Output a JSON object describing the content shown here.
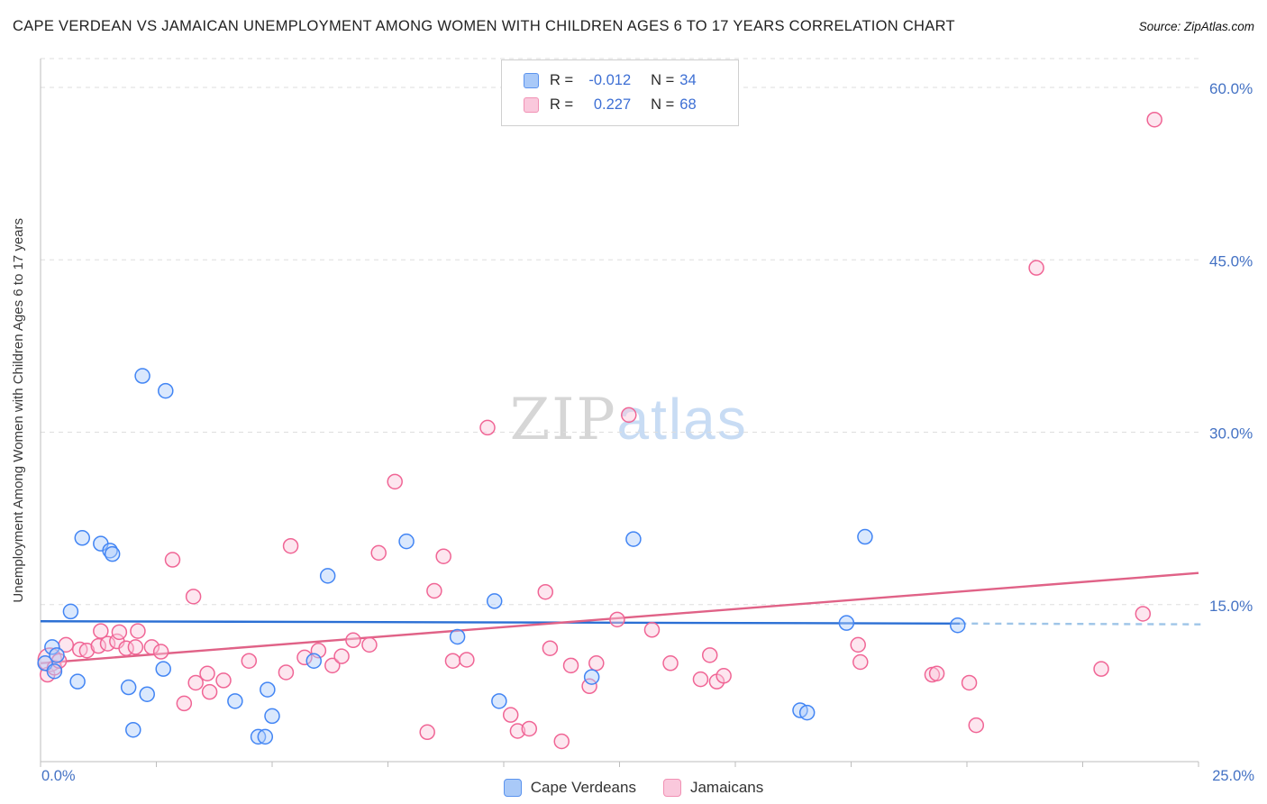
{
  "watermark": {
    "part1": "ZIP",
    "part2": "atlas"
  },
  "legend_labels": {
    "r": "R =",
    "n": "N ="
  },
  "chart_data": {
    "type": "scatter",
    "title": "CAPE VERDEAN VS JAMAICAN UNEMPLOYMENT AMONG WOMEN WITH CHILDREN AGES 6 TO 17 YEARS CORRELATION CHART",
    "source": "Source: ZipAtlas.com",
    "ylabel": "Unemployment Among Women with Children Ages 6 to 17 years",
    "xlabel": "",
    "xlim": [
      0,
      25
    ],
    "ylim": [
      0,
      62
    ],
    "grid": true,
    "legend_position": "top-center",
    "y_gridlines": [
      15,
      30,
      45,
      60
    ],
    "y_tick_labels": [
      "15.0%",
      "30.0%",
      "45.0%",
      "60.0%"
    ],
    "x_tick_labels": [
      "0.0%",
      "25.0%"
    ],
    "series": [
      {
        "name": "Cape Verdeans",
        "R": -0.012,
        "N": 34,
        "fill": "#AECBFA",
        "stroke": "#4285F4",
        "trend_color": "#2B6FD4",
        "trend": {
          "x_start": 0,
          "y_start": 13.55,
          "x_end": 19.85,
          "y_end": 13.35,
          "extension": {
            "x_end": 25.15,
            "y_end": 13.28,
            "color": "#9FC5E8"
          }
        },
        "points": [
          [
            0.1,
            9.9
          ],
          [
            0.25,
            11.3
          ],
          [
            0.3,
            9.2
          ],
          [
            0.35,
            10.6
          ],
          [
            0.65,
            14.4
          ],
          [
            0.8,
            8.3
          ],
          [
            0.9,
            20.8
          ],
          [
            1.3,
            20.3
          ],
          [
            1.5,
            19.7
          ],
          [
            1.55,
            19.4
          ],
          [
            1.9,
            7.8
          ],
          [
            2.0,
            4.1
          ],
          [
            2.2,
            34.9
          ],
          [
            2.3,
            7.2
          ],
          [
            2.65,
            9.4
          ],
          [
            2.7,
            33.6
          ],
          [
            4.2,
            6.6
          ],
          [
            4.7,
            3.5
          ],
          [
            4.85,
            3.5
          ],
          [
            4.9,
            7.6
          ],
          [
            5.0,
            5.3
          ],
          [
            5.9,
            10.1
          ],
          [
            6.2,
            17.5
          ],
          [
            7.9,
            20.5
          ],
          [
            9.0,
            12.2
          ],
          [
            9.8,
            15.3
          ],
          [
            9.9,
            6.6
          ],
          [
            11.9,
            8.7
          ],
          [
            12.8,
            20.7
          ],
          [
            16.4,
            5.8
          ],
          [
            16.55,
            5.6
          ],
          [
            17.4,
            13.4
          ],
          [
            17.8,
            20.9
          ],
          [
            19.8,
            13.2
          ]
        ]
      },
      {
        "name": "Jamaicans",
        "R": 0.227,
        "N": 68,
        "fill": "#FAC8DC",
        "stroke": "#F06595",
        "trend_color": "#E06287",
        "trend": {
          "x_start": 0,
          "y_start": 9.9,
          "x_end": 25.0,
          "y_end": 17.75,
          "extension": null
        },
        "points": [
          [
            0.15,
            8.9
          ],
          [
            0.2,
            10.2,
            13
          ],
          [
            0.3,
            9.5
          ],
          [
            0.4,
            10.1
          ],
          [
            0.55,
            11.5
          ],
          [
            0.85,
            11.1
          ],
          [
            1.0,
            11.0
          ],
          [
            1.25,
            11.4
          ],
          [
            1.3,
            12.7
          ],
          [
            1.45,
            11.6
          ],
          [
            1.65,
            11.8
          ],
          [
            1.7,
            12.6
          ],
          [
            1.85,
            11.2
          ],
          [
            2.05,
            11.3
          ],
          [
            2.1,
            12.7
          ],
          [
            2.4,
            11.3
          ],
          [
            2.6,
            10.9
          ],
          [
            2.85,
            18.9
          ],
          [
            3.1,
            6.4
          ],
          [
            3.3,
            15.7
          ],
          [
            3.35,
            8.2
          ],
          [
            3.6,
            9.0
          ],
          [
            3.65,
            7.4
          ],
          [
            3.95,
            8.4
          ],
          [
            4.5,
            10.1
          ],
          [
            5.3,
            9.1
          ],
          [
            5.4,
            20.1
          ],
          [
            5.7,
            10.4
          ],
          [
            6.0,
            11.0
          ],
          [
            6.3,
            9.7
          ],
          [
            6.5,
            10.5
          ],
          [
            6.75,
            11.9
          ],
          [
            7.1,
            11.5
          ],
          [
            7.3,
            19.5
          ],
          [
            7.65,
            25.7
          ],
          [
            8.35,
            3.9
          ],
          [
            8.5,
            16.2
          ],
          [
            8.7,
            19.2
          ],
          [
            8.9,
            10.1
          ],
          [
            9.2,
            10.2
          ],
          [
            9.65,
            30.4
          ],
          [
            10.15,
            5.4
          ],
          [
            10.3,
            4.0
          ],
          [
            10.55,
            4.2
          ],
          [
            10.9,
            16.1
          ],
          [
            11.0,
            11.2
          ],
          [
            11.25,
            3.1
          ],
          [
            11.45,
            9.7
          ],
          [
            11.85,
            7.9
          ],
          [
            12.0,
            9.9
          ],
          [
            12.45,
            13.7
          ],
          [
            12.7,
            31.5
          ],
          [
            13.2,
            12.8
          ],
          [
            13.6,
            9.9
          ],
          [
            14.25,
            8.5
          ],
          [
            14.45,
            10.6
          ],
          [
            14.6,
            8.3
          ],
          [
            14.75,
            8.8
          ],
          [
            17.65,
            11.5
          ],
          [
            17.7,
            10.0
          ],
          [
            19.25,
            8.9
          ],
          [
            19.35,
            9.0
          ],
          [
            20.05,
            8.2
          ],
          [
            20.2,
            4.5
          ],
          [
            21.5,
            44.3
          ],
          [
            22.9,
            9.4
          ],
          [
            23.8,
            14.2
          ],
          [
            24.05,
            57.2
          ]
        ]
      }
    ]
  }
}
